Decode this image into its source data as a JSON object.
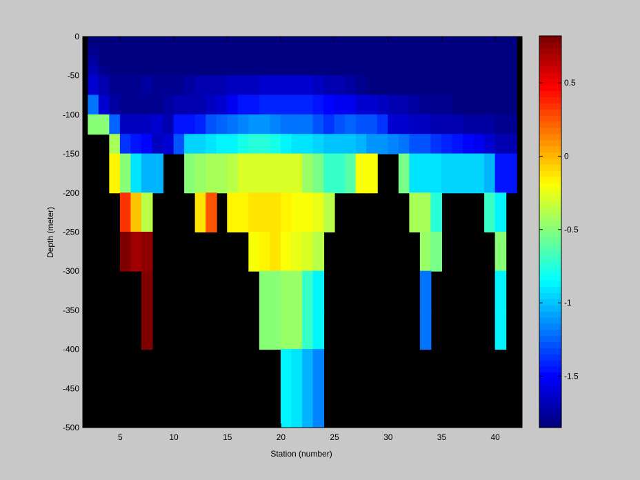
{
  "chart_data": {
    "type": "heatmap",
    "title": "",
    "xlabel": "Station (number)",
    "ylabel": "Depth (meter)",
    "xlim": [
      1.5,
      42.5
    ],
    "ylim": [
      -500,
      0
    ],
    "x_ticks": [
      5,
      10,
      15,
      20,
      25,
      30,
      35,
      40
    ],
    "y_ticks": [
      0,
      -50,
      -100,
      -150,
      -200,
      -250,
      -300,
      -350,
      -400,
      -450,
      -500
    ],
    "colorbar": {
      "range": [
        -1.85,
        0.82
      ],
      "ticks": [
        0.5,
        0,
        -0.5,
        -1,
        -1.5
      ],
      "colormap": "jet",
      "levels": 64
    },
    "missing_color": "#000000",
    "stations": [
      2,
      3,
      4,
      5,
      6,
      7,
      8,
      9,
      10,
      11,
      12,
      13,
      14,
      15,
      16,
      17,
      18,
      19,
      20,
      21,
      22,
      23,
      24,
      25,
      26,
      27,
      28,
      29,
      30,
      31,
      32,
      33,
      34,
      35,
      36,
      37,
      38,
      39,
      40,
      41,
      42
    ],
    "depths": [
      0,
      -12.5,
      -25,
      -37.5,
      -50,
      -75,
      -100,
      -125,
      -150,
      -200,
      -250,
      -300,
      -350,
      -400,
      -500
    ],
    "values": {
      "cells": [
        [
          -1.85,
          -1.85,
          -1.85,
          -1.85,
          -1.85,
          -1.85,
          -1.85,
          -1.85,
          -1.85,
          -1.85,
          -1.85,
          -1.85,
          -1.85,
          -1.85,
          -1.85,
          -1.85,
          -1.85,
          -1.85,
          -1.85,
          -1.85,
          -1.85,
          -1.85,
          -1.85,
          -1.85,
          -1.85,
          -1.85,
          -1.85,
          -1.85,
          -1.85,
          -1.85,
          -1.85,
          -1.85,
          -1.85,
          -1.85,
          -1.85,
          -1.85,
          -1.85,
          -1.85,
          -1.85,
          -1.85
        ],
        [
          -1.8,
          -1.85,
          -1.85,
          -1.85,
          -1.85,
          -1.85,
          -1.85,
          -1.85,
          -1.85,
          -1.85,
          -1.85,
          -1.85,
          -1.85,
          -1.85,
          -1.85,
          -1.85,
          -1.85,
          -1.85,
          -1.85,
          -1.85,
          -1.85,
          -1.85,
          -1.85,
          -1.85,
          -1.85,
          -1.85,
          -1.85,
          -1.85,
          -1.85,
          -1.85,
          -1.85,
          -1.85,
          -1.85,
          -1.85,
          -1.85,
          -1.85,
          -1.85,
          -1.85,
          -1.85,
          -1.85
        ],
        [
          -1.75,
          -1.85,
          -1.85,
          -1.85,
          -1.85,
          -1.85,
          -1.85,
          -1.85,
          -1.85,
          -1.85,
          -1.85,
          -1.85,
          -1.85,
          -1.85,
          -1.85,
          -1.85,
          -1.85,
          -1.85,
          -1.85,
          -1.85,
          -1.85,
          -1.85,
          -1.85,
          -1.85,
          -1.85,
          -1.85,
          -1.85,
          -1.85,
          -1.85,
          -1.85,
          -1.85,
          -1.85,
          -1.85,
          -1.85,
          -1.85,
          -1.85,
          -1.85,
          -1.85,
          -1.85,
          -1.85
        ],
        [
          -1.7,
          -1.8,
          -1.85,
          -1.85,
          -1.85,
          -1.85,
          -1.85,
          -1.85,
          -1.85,
          -1.85,
          -1.85,
          -1.85,
          -1.85,
          -1.85,
          -1.85,
          -1.85,
          -1.85,
          -1.85,
          -1.85,
          -1.85,
          -1.85,
          -1.85,
          -1.85,
          -1.85,
          -1.85,
          -1.85,
          -1.85,
          -1.85,
          -1.85,
          -1.85,
          -1.85,
          -1.85,
          -1.85,
          -1.85,
          -1.85,
          -1.85,
          -1.85,
          -1.85,
          -1.85,
          -1.85
        ],
        [
          -1.6,
          -1.7,
          -1.8,
          -1.8,
          -1.78,
          -1.76,
          -1.8,
          -1.78,
          -1.78,
          -1.75,
          -1.72,
          -1.72,
          -1.7,
          -1.68,
          -1.65,
          -1.65,
          -1.62,
          -1.6,
          -1.6,
          -1.6,
          -1.6,
          -1.65,
          -1.7,
          -1.72,
          -1.75,
          -1.8,
          -1.82,
          -1.84,
          -1.84,
          -1.85,
          -1.85,
          -1.85,
          -1.85,
          -1.85,
          -1.85,
          -1.85,
          -1.85,
          -1.85,
          -1.85,
          -1.85
        ],
        [
          -1.2,
          -1.6,
          -1.75,
          -1.8,
          -1.8,
          -1.8,
          -1.78,
          -1.75,
          -1.7,
          -1.72,
          -1.7,
          -1.65,
          -1.62,
          -1.55,
          -1.45,
          -1.45,
          -1.4,
          -1.4,
          -1.4,
          -1.4,
          -1.4,
          -1.45,
          -1.5,
          -1.55,
          -1.55,
          -1.6,
          -1.62,
          -1.65,
          -1.7,
          -1.72,
          -1.75,
          -1.78,
          -1.8,
          -1.8,
          -1.82,
          -1.82,
          -1.82,
          -1.85,
          -1.85,
          -1.85
        ],
        [
          -0.5,
          -0.5,
          -1.25,
          -1.65,
          -1.65,
          -1.65,
          -1.6,
          -1.7,
          -1.45,
          -1.45,
          -1.4,
          -1.3,
          -1.25,
          -1.2,
          -1.15,
          -1.1,
          -1.1,
          -1.15,
          -1.2,
          -1.2,
          -1.2,
          -1.3,
          -1.35,
          -1.3,
          -1.25,
          -1.3,
          -1.3,
          -1.35,
          -1.6,
          -1.6,
          -1.65,
          -1.65,
          -1.7,
          -1.7,
          -1.7,
          -1.75,
          -1.75,
          -1.75,
          -1.8,
          -1.8
        ],
        [
          null,
          null,
          -0.4,
          -1.35,
          -1.45,
          -1.5,
          -1.65,
          -1.6,
          -1.3,
          -0.95,
          -0.95,
          -0.9,
          -0.85,
          -0.85,
          -0.8,
          -0.75,
          -0.75,
          -0.8,
          -0.85,
          -0.9,
          -0.9,
          -0.95,
          -1.0,
          -1.0,
          -1.0,
          -1.05,
          -1.1,
          -1.1,
          -1.15,
          -1.2,
          -1.3,
          -1.3,
          -1.35,
          -1.4,
          -1.45,
          -1.5,
          -1.55,
          -1.6,
          -1.7,
          -1.7
        ],
        [
          null,
          null,
          -0.15,
          -0.5,
          -0.9,
          -1.05,
          -1.05,
          null,
          null,
          -0.5,
          -0.45,
          -0.4,
          -0.4,
          -0.35,
          -0.3,
          -0.3,
          -0.3,
          -0.3,
          -0.3,
          -0.3,
          -0.45,
          -0.55,
          -0.7,
          -0.7,
          -0.6,
          -0.2,
          -0.2,
          null,
          null,
          -0.55,
          -0.9,
          -0.9,
          -0.9,
          -0.95,
          -0.95,
          -0.95,
          -0.95,
          -1.05,
          -1.45,
          -1.45
        ],
        [
          null,
          null,
          null,
          0.35,
          -0.05,
          -0.35,
          null,
          null,
          null,
          null,
          -0.1,
          0.25,
          null,
          -0.15,
          -0.15,
          -0.1,
          -0.1,
          -0.1,
          -0.15,
          -0.2,
          -0.2,
          -0.25,
          -0.35,
          null,
          null,
          null,
          null,
          null,
          null,
          null,
          -0.4,
          -0.4,
          -0.75,
          null,
          null,
          null,
          null,
          -0.7,
          -0.85,
          null
        ],
        [
          null,
          null,
          null,
          0.8,
          0.7,
          0.75,
          null,
          null,
          null,
          null,
          null,
          null,
          null,
          null,
          null,
          -0.2,
          -0.15,
          -0.1,
          -0.2,
          -0.25,
          -0.3,
          -0.35,
          null,
          null,
          null,
          null,
          null,
          null,
          null,
          null,
          null,
          -0.45,
          -0.55,
          null,
          null,
          null,
          null,
          null,
          -0.5,
          null
        ],
        [
          null,
          null,
          null,
          null,
          null,
          0.8,
          null,
          null,
          null,
          null,
          null,
          null,
          null,
          null,
          null,
          null,
          -0.5,
          -0.5,
          -0.45,
          -0.45,
          -0.7,
          -0.85,
          null,
          null,
          null,
          null,
          null,
          null,
          null,
          null,
          null,
          -1.2,
          null,
          null,
          null,
          null,
          null,
          null,
          -0.85,
          null
        ],
        [
          null,
          null,
          null,
          null,
          null,
          0.8,
          null,
          null,
          null,
          null,
          null,
          null,
          null,
          null,
          null,
          null,
          -0.5,
          -0.5,
          -0.45,
          -0.45,
          -0.7,
          -0.85,
          null,
          null,
          null,
          null,
          null,
          null,
          null,
          null,
          null,
          -1.2,
          null,
          null,
          null,
          null,
          null,
          null,
          -0.85,
          null
        ],
        [
          null,
          null,
          null,
          null,
          null,
          null,
          null,
          null,
          null,
          null,
          null,
          null,
          null,
          null,
          null,
          null,
          null,
          null,
          -0.85,
          -0.9,
          -1.05,
          -1.15,
          null,
          null,
          null,
          null,
          null,
          null,
          null,
          null,
          null,
          null,
          null,
          null,
          null,
          null,
          null,
          null,
          null,
          null
        ]
      ]
    }
  }
}
